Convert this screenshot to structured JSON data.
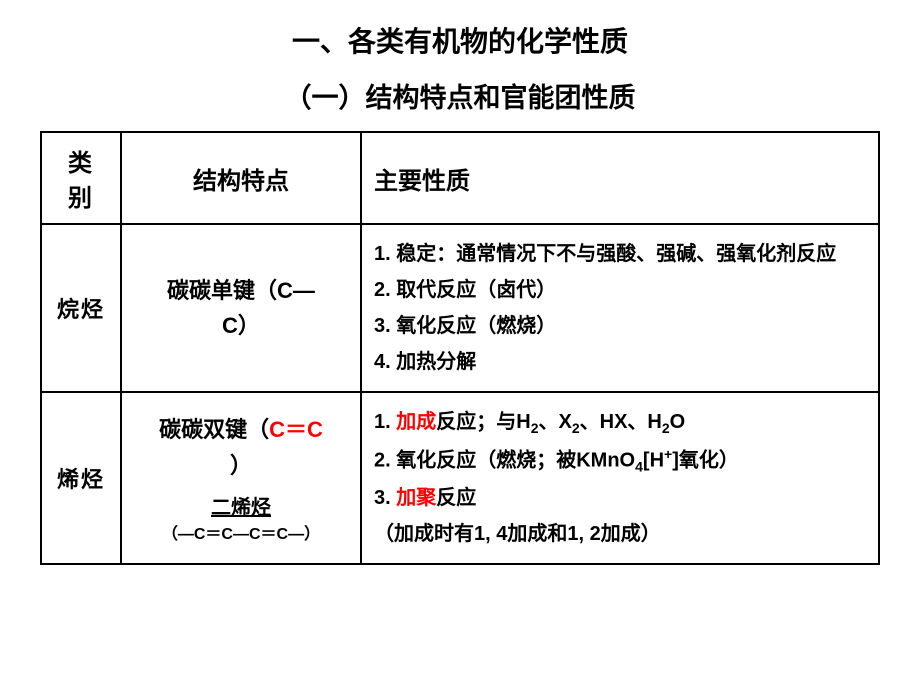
{
  "titles": {
    "main": "一、各类有机物的化学性质",
    "sub": "（一）结构特点和官能团性质"
  },
  "table": {
    "headers": {
      "category": "类 别",
      "structure": "结构特点",
      "properties": "主要性质"
    },
    "rows": [
      {
        "category": "烷烃",
        "structure_line1": "碳碳单键（C—",
        "structure_line2": "C）",
        "prop1": "1. 稳定：通常情况下不与强酸、强碱、强氧化剂反应",
        "prop2": "2. 取代反应（卤代）",
        "prop3": "3. 氧化反应（燃烧）",
        "prop4": "4. 加热分解"
      },
      {
        "category": "烯烃",
        "structure_prefix": "碳碳双键（",
        "structure_red": "C＝C",
        "structure_suffix": "）",
        "sub_name": "二烯烃",
        "sub_formula": "（—C＝C—C＝C—）",
        "prop1_pre": "1. ",
        "prop1_red": "加成",
        "prop1_post": "反应；与H",
        "prop1_post2": "、X",
        "prop1_post3": "、HX、H",
        "prop1_post4": "O",
        "prop2_pre": "2. 氧化反应（燃烧；被KMnO",
        "prop2_post": "[H",
        "prop2_end": "]氧化）",
        "prop3_pre": "3. ",
        "prop3_red": "加聚",
        "prop3_post": "反应",
        "prop4": "（加成时有1, 4加成和1, 2加成）"
      }
    ]
  },
  "colors": {
    "text": "#000000",
    "highlight": "#ff0000",
    "border": "#000000",
    "background": "#ffffff"
  }
}
